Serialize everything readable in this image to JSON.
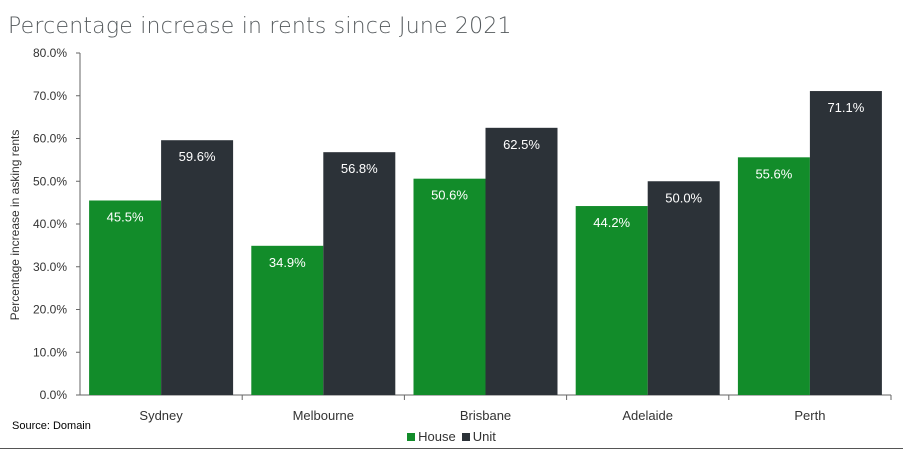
{
  "title": "Percentage increase in rents since June 2021",
  "source": "Source: Domain",
  "colors": {
    "house": "#128c2a",
    "unit": "#2c3238"
  },
  "chart_data": {
    "type": "bar",
    "title": "Percentage increase in rents since June 2021",
    "xlabel": "",
    "ylabel": "Percentage increase in asking rents",
    "categories": [
      "Sydney",
      "Melbourne",
      "Brisbane",
      "Adelaide",
      "Perth"
    ],
    "series": [
      {
        "name": "House",
        "values": [
          45.5,
          34.9,
          50.6,
          44.2,
          55.6
        ],
        "labels": [
          "45.5%",
          "34.9%",
          "50.6%",
          "44.2%",
          "55.6%"
        ]
      },
      {
        "name": "Unit",
        "values": [
          59.6,
          56.8,
          62.5,
          50.0,
          71.1
        ],
        "labels": [
          "59.6%",
          "56.8%",
          "62.5%",
          "50.0%",
          "71.1%"
        ]
      }
    ],
    "ylim": [
      0,
      80
    ],
    "yticks": [
      "0.0%",
      "10.0%",
      "20.0%",
      "30.0%",
      "40.0%",
      "50.0%",
      "60.0%",
      "70.0%",
      "80.0%"
    ],
    "grid": false,
    "legend": "bottom-center"
  }
}
